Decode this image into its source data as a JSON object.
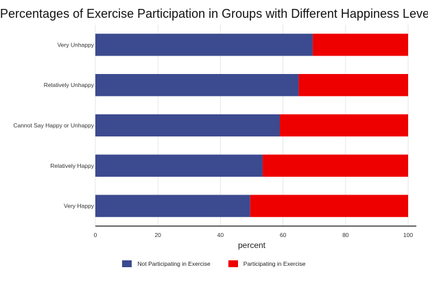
{
  "chart_data": {
    "type": "bar",
    "orientation": "horizontal",
    "stacked": true,
    "title": "Percentages of Exercise Participation in Groups with Different Happiness Levels",
    "xlabel": "percent",
    "ylabel": "",
    "xlim": [
      0,
      100
    ],
    "xticks": [
      0,
      20,
      40,
      60,
      80,
      100
    ],
    "grid": true,
    "legend_position": "bottom",
    "categories": [
      "Very Unhappy",
      "Relatively Unhappy",
      "Cannot Say Happy or Unhappy",
      "Relatively Happy",
      "Very Happy"
    ],
    "series": [
      {
        "name": "Not Participating in Exercise",
        "color": "#3c4a8f",
        "values": [
          69.5,
          65,
          59,
          53.5,
          49.5
        ]
      },
      {
        "name": "Participating in Exercise",
        "color": "#ee0000",
        "values": [
          30.5,
          35,
          41,
          46.5,
          50.5
        ]
      }
    ]
  }
}
